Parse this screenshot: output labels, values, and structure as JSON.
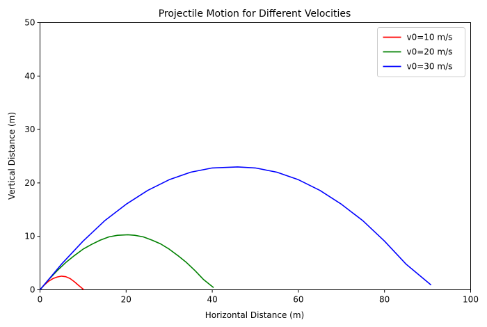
{
  "chart_data": {
    "type": "line",
    "title": "Projectile Motion for Different Velocities",
    "xlabel": "Horizontal Distance (m)",
    "ylabel": "Vertical Distance (m)",
    "xlim": [
      0,
      100
    ],
    "ylim": [
      0,
      50
    ],
    "xticks": [
      0,
      20,
      40,
      60,
      80,
      100
    ],
    "yticks": [
      0,
      10,
      20,
      30,
      40,
      50
    ],
    "grid": false,
    "legend_position": "top-right",
    "series": [
      {
        "name": "v0=10 m/s",
        "color": "#ff0000",
        "x": [
          0,
          1,
          2,
          3,
          4,
          5,
          6,
          7,
          8,
          9,
          10.2
        ],
        "y": [
          0,
          0.9,
          1.6,
          2.1,
          2.4,
          2.55,
          2.45,
          2.1,
          1.5,
          0.8,
          0
        ]
      },
      {
        "name": "v0=20 m/s",
        "color": "#008000",
        "x": [
          0,
          2,
          4,
          6,
          8,
          10,
          12,
          14,
          16,
          18,
          20.4,
          22,
          24,
          26,
          28,
          30,
          32,
          34,
          36,
          38,
          40.3
        ],
        "y": [
          0,
          1.9,
          3.6,
          5.1,
          6.4,
          7.6,
          8.5,
          9.3,
          9.9,
          10.2,
          10.3,
          10.2,
          9.9,
          9.3,
          8.6,
          7.6,
          6.4,
          5.1,
          3.6,
          1.9,
          0.4
        ]
      },
      {
        "name": "v0=30 m/s",
        "color": "#0000ff",
        "x": [
          0,
          5,
          10,
          15,
          20,
          25,
          30,
          35,
          40,
          45.9,
          50,
          55,
          60,
          65,
          70,
          75,
          80,
          85,
          90.8
        ],
        "y": [
          0,
          4.8,
          9.1,
          12.9,
          16.0,
          18.6,
          20.6,
          22.0,
          22.8,
          23.0,
          22.8,
          22.0,
          20.6,
          18.6,
          16.0,
          12.9,
          9.1,
          4.8,
          0.9
        ]
      }
    ]
  }
}
